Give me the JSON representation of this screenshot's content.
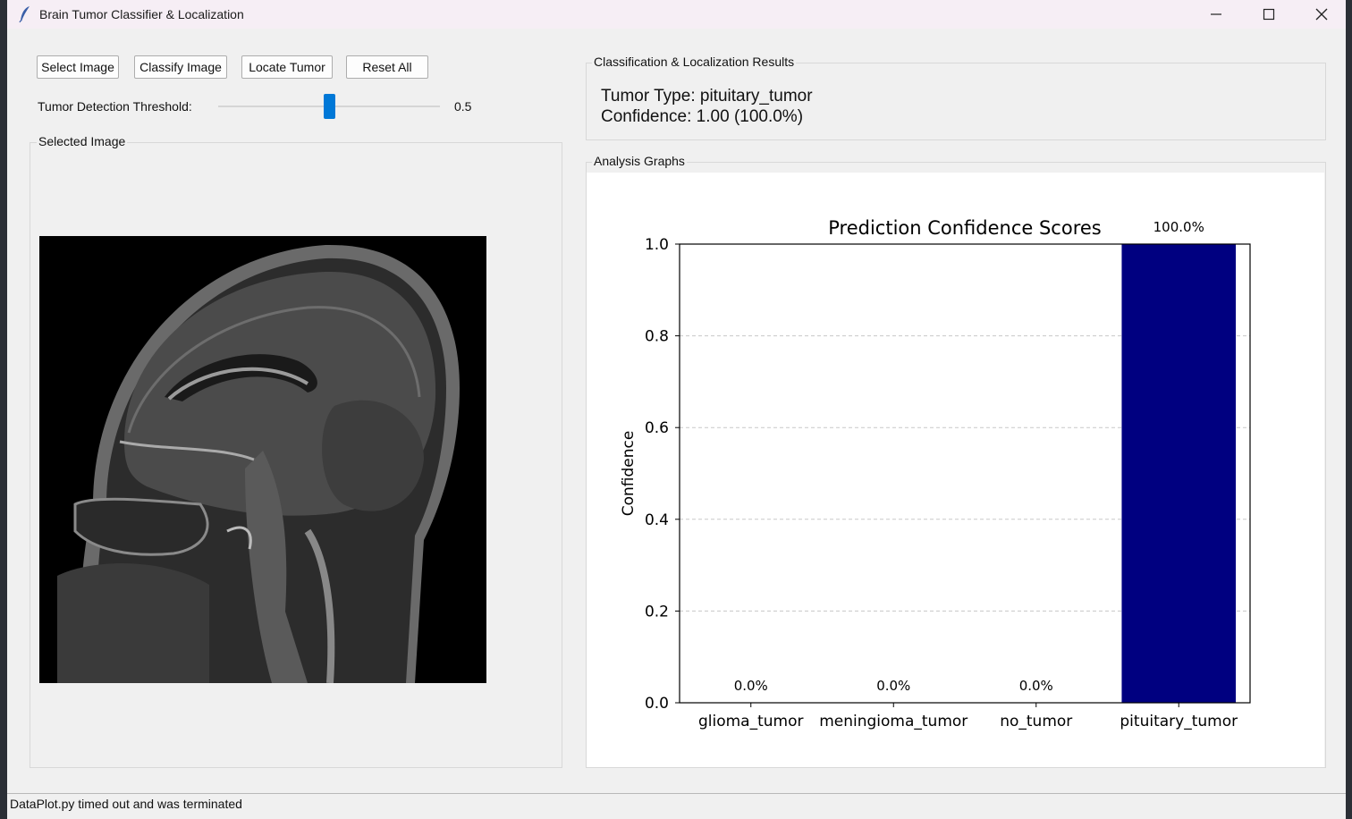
{
  "window": {
    "title": "Brain Tumor Classifier & Localization",
    "icon": "feather-icon",
    "controls": [
      "minimize-icon",
      "maximize-icon",
      "close-icon"
    ]
  },
  "toolbar": {
    "select_image": "Select Image",
    "classify_image": "Classify Image",
    "locate_tumor": "Locate Tumor",
    "reset_all": "Reset All"
  },
  "threshold": {
    "label": "Tumor Detection Threshold:",
    "value_text": "0.5",
    "value": 0.5,
    "min": 0,
    "max": 1
  },
  "selected_image": {
    "group_label": "Selected Image"
  },
  "results": {
    "group_label": "Classification & Localization Results",
    "tumor_type_line": "Tumor Type: pituitary_tumor",
    "confidence_line": "Confidence: 1.00 (100.0%)"
  },
  "graphs": {
    "group_label": "Analysis Graphs"
  },
  "chart_data": {
    "type": "bar",
    "title": "Prediction Confidence Scores",
    "xlabel": "",
    "ylabel": "Confidence",
    "categories": [
      "glioma_tumor",
      "meningioma_tumor",
      "no_tumor",
      "pituitary_tumor"
    ],
    "values": [
      0.0,
      0.0,
      0.0,
      1.0
    ],
    "value_labels": [
      "0.0%",
      "0.0%",
      "0.0%",
      "100.0%"
    ],
    "ylim": [
      0,
      1.0
    ],
    "yticks": [
      "0.0",
      "0.2",
      "0.4",
      "0.6",
      "0.8",
      "1.0"
    ],
    "grid": "y dashed",
    "bar_color": "#000080"
  },
  "status": {
    "text": "DataPlot.py timed out and was terminated"
  },
  "colors": {
    "accent": "#0078d7",
    "bar": "#000080",
    "background": "#f0f0f0"
  }
}
